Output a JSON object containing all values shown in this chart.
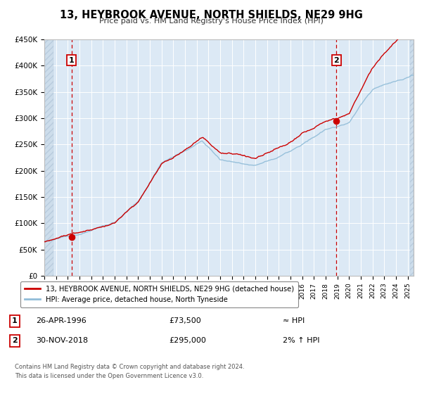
{
  "title": "13, HEYBROOK AVENUE, NORTH SHIELDS, NE29 9HG",
  "subtitle": "Price paid vs. HM Land Registry's House Price Index (HPI)",
  "bg_color": "#dce9f5",
  "hpi_color": "#90bcd8",
  "price_color": "#cc0000",
  "ylim": [
    0,
    450000
  ],
  "xlim_start": 1994.0,
  "xlim_end": 2025.5,
  "sale1_x": 1996.32,
  "sale1_y": 73500,
  "sale2_x": 2018.92,
  "sale2_y": 295000,
  "legend_line1": "13, HEYBROOK AVENUE, NORTH SHIELDS, NE29 9HG (detached house)",
  "legend_line2": "HPI: Average price, detached house, North Tyneside",
  "note1_date": "26-APR-1996",
  "note1_price": "£73,500",
  "note1_hpi": "≈ HPI",
  "note2_date": "30-NOV-2018",
  "note2_price": "£295,000",
  "note2_hpi": "2% ↑ HPI",
  "footer1": "Contains HM Land Registry data © Crown copyright and database right 2024.",
  "footer2": "This data is licensed under the Open Government Licence v3.0.",
  "yticks": [
    0,
    50000,
    100000,
    150000,
    200000,
    250000,
    300000,
    350000,
    400000,
    450000
  ],
  "ytick_labels": [
    "£0",
    "£50K",
    "£100K",
    "£150K",
    "£200K",
    "£250K",
    "£300K",
    "£350K",
    "£400K",
    "£450K"
  ]
}
